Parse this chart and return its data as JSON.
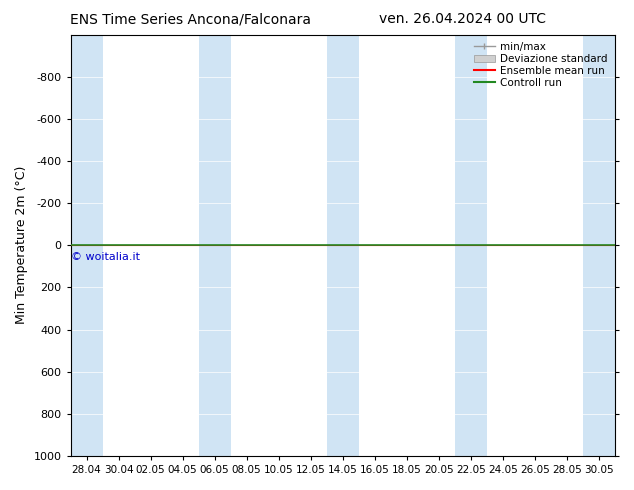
{
  "title_left": "ENS Time Series Ancona/Falconara",
  "title_right": "ven. 26.04.2024 00 UTC",
  "ylabel": "Min Temperature 2m (°C)",
  "ylim": [
    -1000,
    1000
  ],
  "yticks": [
    -800,
    -600,
    -400,
    -200,
    0,
    200,
    400,
    600,
    800,
    1000
  ],
  "xtick_labels": [
    "28.04",
    "30.04",
    "02.05",
    "04.05",
    "06.05",
    "08.05",
    "10.05",
    "12.05",
    "14.05",
    "16.05",
    "18.05",
    "20.05",
    "22.05",
    "24.05",
    "26.05",
    "28.05",
    "30.05"
  ],
  "bg_color": "#ffffff",
  "plot_bg_color": "#ffffff",
  "stripe_color": "#d0e4f4",
  "grid_color": "#ffffff",
  "control_run_value": 0,
  "ensemble_mean_value": 0,
  "watermark": "© woitalia.it",
  "watermark_color": "#0000cc",
  "legend_items": [
    {
      "label": "min/max",
      "color": "#aaaaaa",
      "style": "minmax"
    },
    {
      "label": "Deviazione standard",
      "color": "#cccccc",
      "style": "bar"
    },
    {
      "label": "Ensemble mean run",
      "color": "#ff0000",
      "style": "line"
    },
    {
      "label": "Controll run",
      "color": "#228822",
      "style": "line"
    }
  ],
  "stripe_positions": [
    0,
    2,
    8,
    10,
    16,
    18,
    24,
    26,
    30,
    32
  ],
  "invert_yaxis": true
}
